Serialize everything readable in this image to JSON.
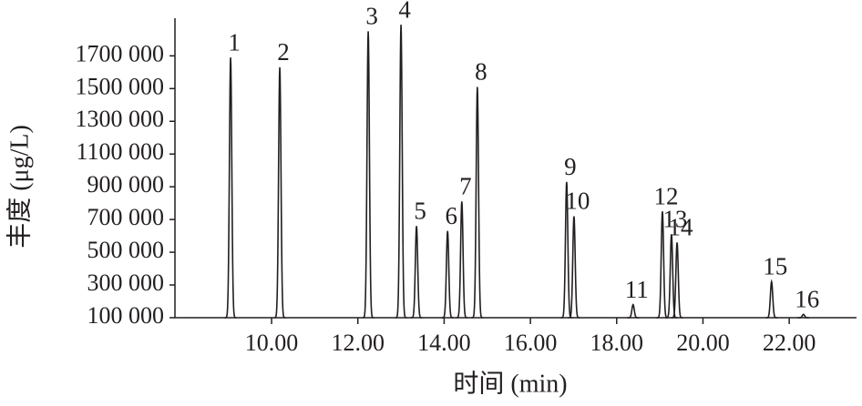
{
  "chart_data": {
    "type": "chromatogram",
    "x_label": "时间 (min)",
    "y_label": "丰度 (μg/L)",
    "peak_labels": [
      "1",
      "2",
      "3",
      "4",
      "5",
      "6",
      "7",
      "8",
      "9",
      "10",
      "11",
      "12",
      "13",
      "14",
      "15",
      "16"
    ],
    "x": [
      9.05,
      10.19,
      12.24,
      13.0,
      13.36,
      14.08,
      14.41,
      14.77,
      16.84,
      17.01,
      18.38,
      19.06,
      19.27,
      19.4,
      21.59,
      22.33
    ],
    "values": [
      1690000,
      1630000,
      1850000,
      1890000,
      660000,
      630000,
      810000,
      1510000,
      930000,
      720000,
      180000,
      750000,
      610000,
      560000,
      320000,
      120000
    ],
    "color": "#231f20",
    "xlim": [
      7.76,
      23.56
    ],
    "ylim": [
      100000,
      1930000
    ],
    "xticks": [
      {
        "value": 10,
        "label": "10.00"
      },
      {
        "value": 12,
        "label": "12.00"
      },
      {
        "value": 14,
        "label": "14.00"
      },
      {
        "value": 16,
        "label": "16.00"
      },
      {
        "value": 18,
        "label": "18.00"
      },
      {
        "value": 20,
        "label": "20.00"
      },
      {
        "value": 22,
        "label": "22.00"
      }
    ],
    "yticks": [
      {
        "value": 100000,
        "label": "100 000"
      },
      {
        "value": 300000,
        "label": "300 000"
      },
      {
        "value": 500000,
        "label": "500 000"
      },
      {
        "value": 700000,
        "label": "700 000"
      },
      {
        "value": 900000,
        "label": "900 000"
      },
      {
        "value": 1100000,
        "label": "1100 000"
      },
      {
        "value": 1300000,
        "label": "1300 000"
      },
      {
        "value": 1500000,
        "label": "1500 000"
      },
      {
        "value": 1700000,
        "label": "1700 000"
      }
    ],
    "grid": false
  }
}
